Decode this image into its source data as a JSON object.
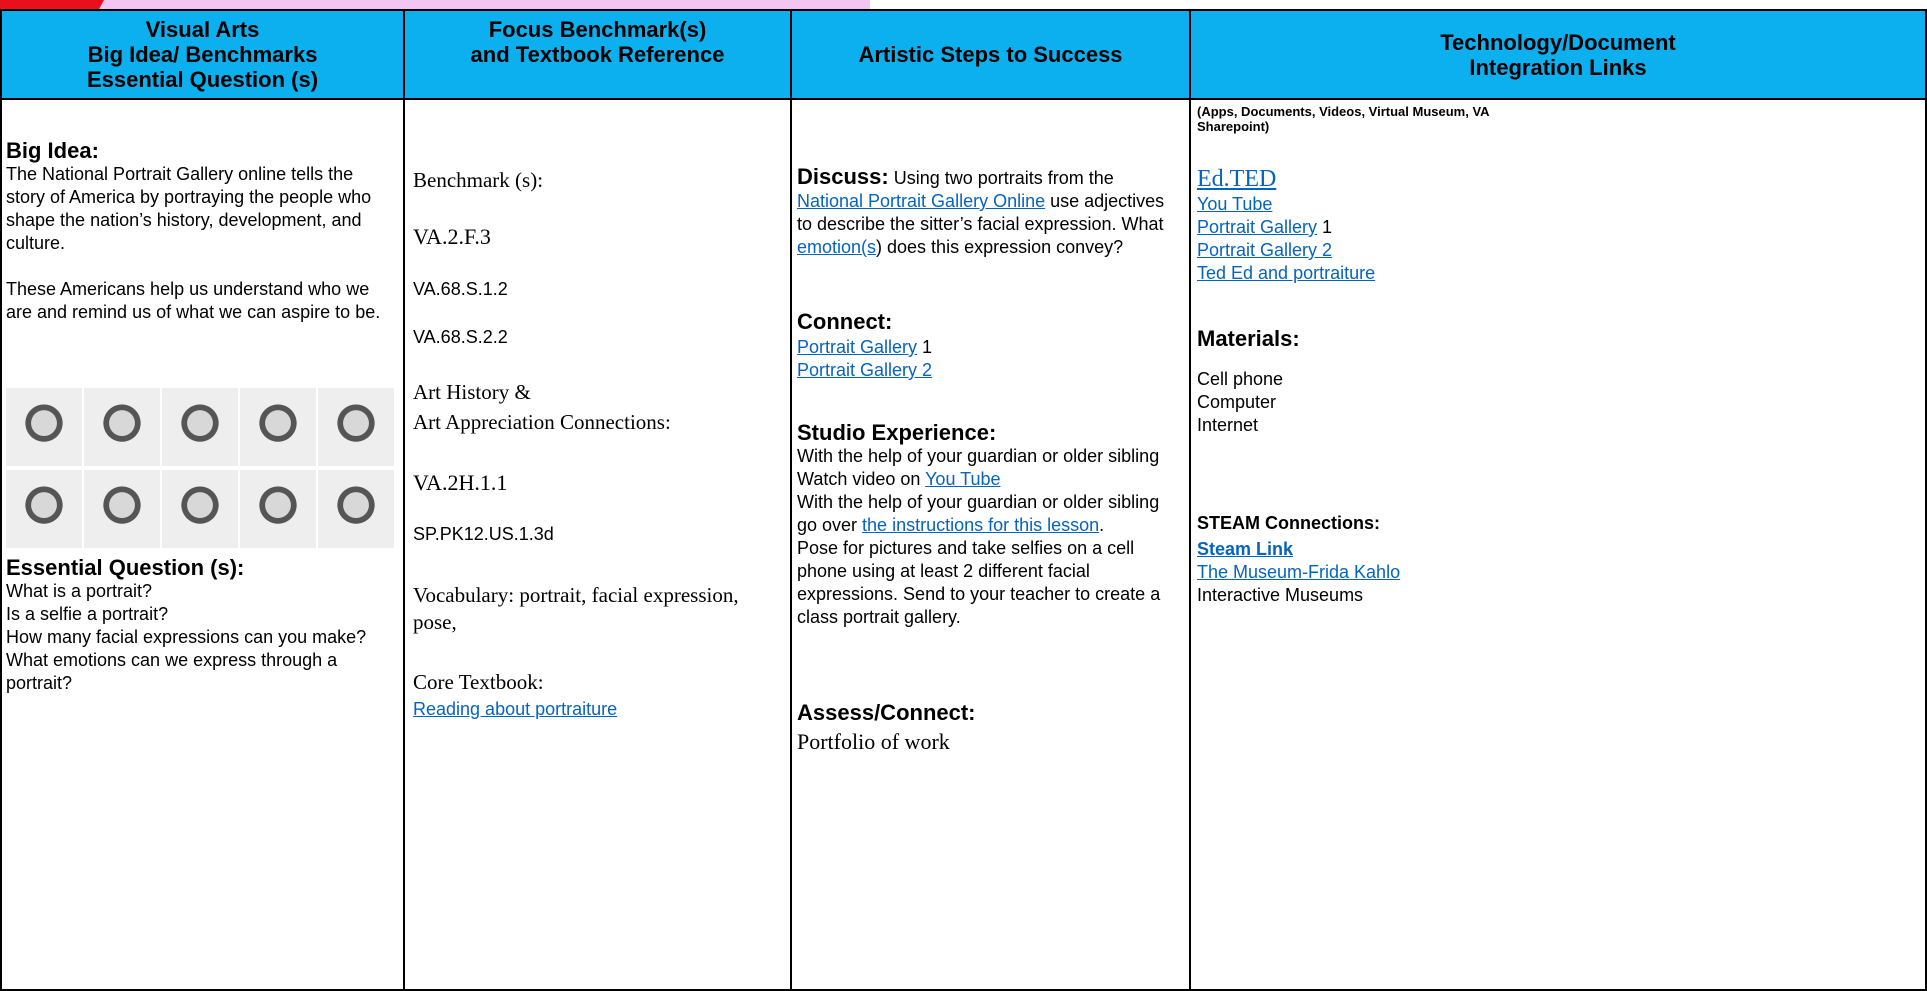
{
  "header": {
    "col1": [
      "Visual Arts",
      "Big Idea/ Benchmarks",
      "Essential Question (s)"
    ],
    "col2": [
      "Focus Benchmark(s)",
      "and Textbook Reference"
    ],
    "col3": "Artistic Steps to Success",
    "col4": [
      "Technology/Document",
      "Integration Links"
    ]
  },
  "col1": {
    "big_idea_heading": "Big Idea:",
    "big_idea_text": "The National Portrait Gallery online tells the story of America by portraying the people who shape the nation’s history, development, and culture.",
    "big_idea_text2": "These Americans help us understand who we are and remind us of what we can aspire to be.",
    "eq_heading": "Essential Question (s):",
    "questions": [
      "What is a portrait?",
      "Is a selfie a portrait?",
      "How many facial expressions can you make?",
      "What emotions can we express through a portrait?"
    ]
  },
  "col2": {
    "benchmark_label": "Benchmark (s):",
    "benchmarks": [
      "VA.2.F.3",
      "VA.68.S.1.2",
      "VA.68.S.2.2"
    ],
    "history_label": [
      "Art History &",
      "Art Appreciation Connections:"
    ],
    "history": [
      "VA.2H.1.1",
      "SP.PK12.US.1.3d"
    ],
    "vocabulary": "Vocabulary: portrait, facial expression, pose,",
    "textbook_label": "Core Textbook:",
    "textbook_link": "Reading about portraiture"
  },
  "col3": {
    "discuss_heading": "Discuss:",
    "discuss": [
      " Using two portraits from the ",
      {
        "link": "National Portrait Gallery Online"
      },
      " use adjectives to describe the sitter’s facial expression. What ",
      {
        "link": "emotion(s"
      },
      ") does this expression convey?"
    ],
    "connect_heading": "Connect:",
    "connect": [
      [
        {
          "link": "Portrait Gallery"
        },
        " 1"
      ],
      [
        {
          "link": "Portrait Gallery 2"
        }
      ]
    ],
    "studio_heading": "Studio Experience:",
    "studio": [
      [
        "With the help of your guardian or older sibling  Watch video on ",
        {
          "link": "You Tube"
        }
      ],
      [
        "With the help of your guardian or older sibling go over ",
        {
          "link": "the instructions for this lesson"
        },
        "."
      ],
      [
        "Pose for pictures and take selfies on a cell phone using at least 2 different facial expressions.  Send to your teacher to create a class portrait gallery."
      ]
    ],
    "assess_heading": "Assess/Connect:",
    "assess": "Portfolio of work"
  },
  "col4": {
    "note": "(Apps, Documents,  Videos,  Virtual Museum, VA Sharepoint)",
    "links": [
      [
        {
          "link": "Ed.TED"
        }
      ],
      [
        {
          "link": "You Tube"
        }
      ],
      [
        {
          "link": "Portrait Gallery"
        },
        " 1"
      ],
      [
        {
          "link": "Portrait Gallery 2"
        }
      ],
      [
        {
          "link": "Ted Ed and portraiture"
        }
      ]
    ],
    "materials_heading": "Materials:",
    "materials": [
      "Cell phone",
      "Computer",
      "Internet"
    ],
    "steam_heading": "STEAM Connections:",
    "steam": [
      [
        {
          "link": "Steam Link"
        }
      ],
      [
        {
          "link": "The Museum-Frida Kahlo"
        }
      ],
      [
        "Interactive Museums"
      ]
    ]
  }
}
